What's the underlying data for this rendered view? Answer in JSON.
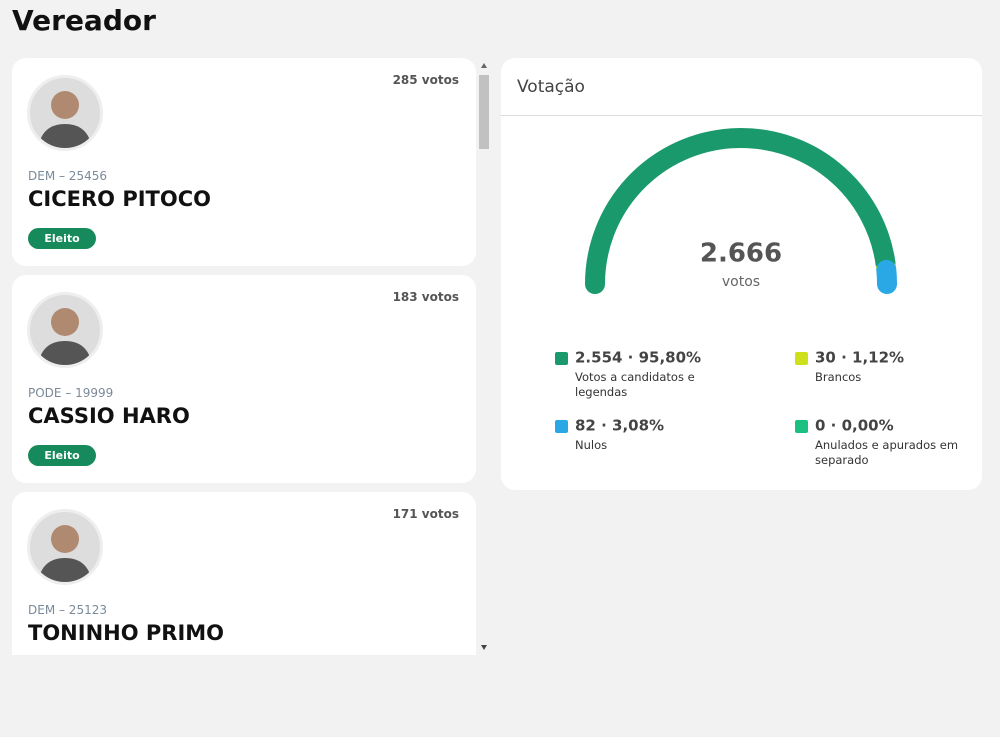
{
  "header": {
    "title": "Vereador"
  },
  "candidates": [
    {
      "votes": "285 votos",
      "party": "DEM – 25456",
      "name": "CICERO PITOCO",
      "status": "Eleito"
    },
    {
      "votes": "183 votos",
      "party": "PODE – 19999",
      "name": "CASSIO HARO",
      "status": "Eleito"
    },
    {
      "votes": "171 votos",
      "party": "DEM – 25123",
      "name": "TONINHO PRIMO"
    }
  ],
  "panel": {
    "title": "Votação",
    "total": "2.666",
    "total_unit": "votos",
    "segments": [
      {
        "label": "2.554 · 95,80%",
        "value": 95.8,
        "name": "Votos a candidatos e legendas",
        "color": "#1a9a6c"
      },
      {
        "label": "30 · 1,12%",
        "value": 1.12,
        "name": "Brancos",
        "color": "#cde01b"
      },
      {
        "label": "82 · 3,08%",
        "value": 3.08,
        "name": "Nulos",
        "color": "#2aa8e6"
      },
      {
        "label": "0 · 0,00%",
        "value": 0,
        "name": "Anulados e apurados em separado",
        "color": "#19c07f"
      }
    ]
  }
}
